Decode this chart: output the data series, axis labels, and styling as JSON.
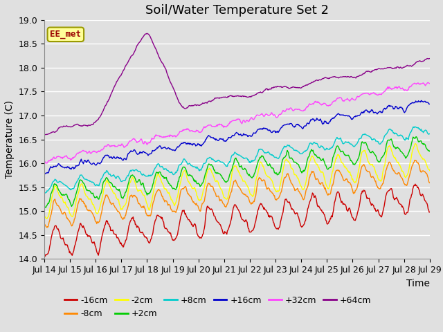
{
  "title": "Soil/Water Temperature Set 2",
  "xlabel": "Time",
  "ylabel": "Temperature (C)",
  "ylim": [
    14.0,
    19.0
  ],
  "xlim": [
    0,
    360
  ],
  "x_tick_labels": [
    "Jul 14",
    "Jul 15",
    "Jul 16",
    "Jul 17",
    "Jul 18",
    "Jul 19",
    "Jul 20",
    "Jul 21",
    "Jul 22",
    "Jul 23",
    "Jul 24",
    "Jul 25",
    "Jul 26",
    "Jul 27",
    "Jul 28",
    "Jul 29"
  ],
  "x_tick_positions": [
    0,
    24,
    48,
    72,
    96,
    120,
    144,
    168,
    192,
    216,
    240,
    264,
    288,
    312,
    336,
    360
  ],
  "y_ticks": [
    14.0,
    14.5,
    15.0,
    15.5,
    16.0,
    16.5,
    17.0,
    17.5,
    18.0,
    18.5,
    19.0
  ],
  "series_order": [
    "-16cm",
    "-8cm",
    "-2cm",
    "+2cm",
    "+8cm",
    "+16cm",
    "+32cm",
    "+64cm"
  ],
  "series": {
    "-16cm": {
      "color": "#cc0000",
      "base_start": 14.35,
      "base_end": 15.3,
      "amplitude": 0.25,
      "period": 24,
      "noise": 0.06
    },
    "-8cm": {
      "color": "#ff8800",
      "base_start": 14.9,
      "base_end": 15.85,
      "amplitude": 0.22,
      "period": 24,
      "noise": 0.05
    },
    "-2cm": {
      "color": "#ffff00",
      "base_start": 15.15,
      "base_end": 16.1,
      "amplitude": 0.28,
      "period": 24,
      "noise": 0.05
    },
    "+2cm": {
      "color": "#00cc00",
      "base_start": 15.3,
      "base_end": 16.4,
      "amplitude": 0.18,
      "period": 24,
      "noise": 0.05
    },
    "+8cm": {
      "color": "#00cccc",
      "base_start": 15.5,
      "base_end": 16.7,
      "amplitude": 0.1,
      "period": 24,
      "noise": 0.04
    },
    "+16cm": {
      "color": "#0000cc",
      "base_start": 15.85,
      "base_end": 17.3,
      "amplitude": 0.05,
      "period": 24,
      "noise": 0.04
    },
    "+32cm": {
      "color": "#ff44ff",
      "base_start": 16.05,
      "base_end": 17.7,
      "amplitude": 0.04,
      "period": 24,
      "noise": 0.04
    },
    "+64cm": {
      "color": "#880088",
      "base_start": 16.65,
      "base_end": 18.15,
      "amplitude": 0.02,
      "period": 48,
      "noise": 0.04
    }
  },
  "annotation_text": "EE_met",
  "annotation_color": "#990000",
  "annotation_bg": "#ffff99",
  "annotation_border": "#999900",
  "background_color": "#e0e0e0",
  "plot_bg": "#e0e0e0",
  "grid_color": "#ffffff",
  "title_fontsize": 13,
  "axis_fontsize": 10,
  "tick_fontsize": 9,
  "legend_fontsize": 9
}
